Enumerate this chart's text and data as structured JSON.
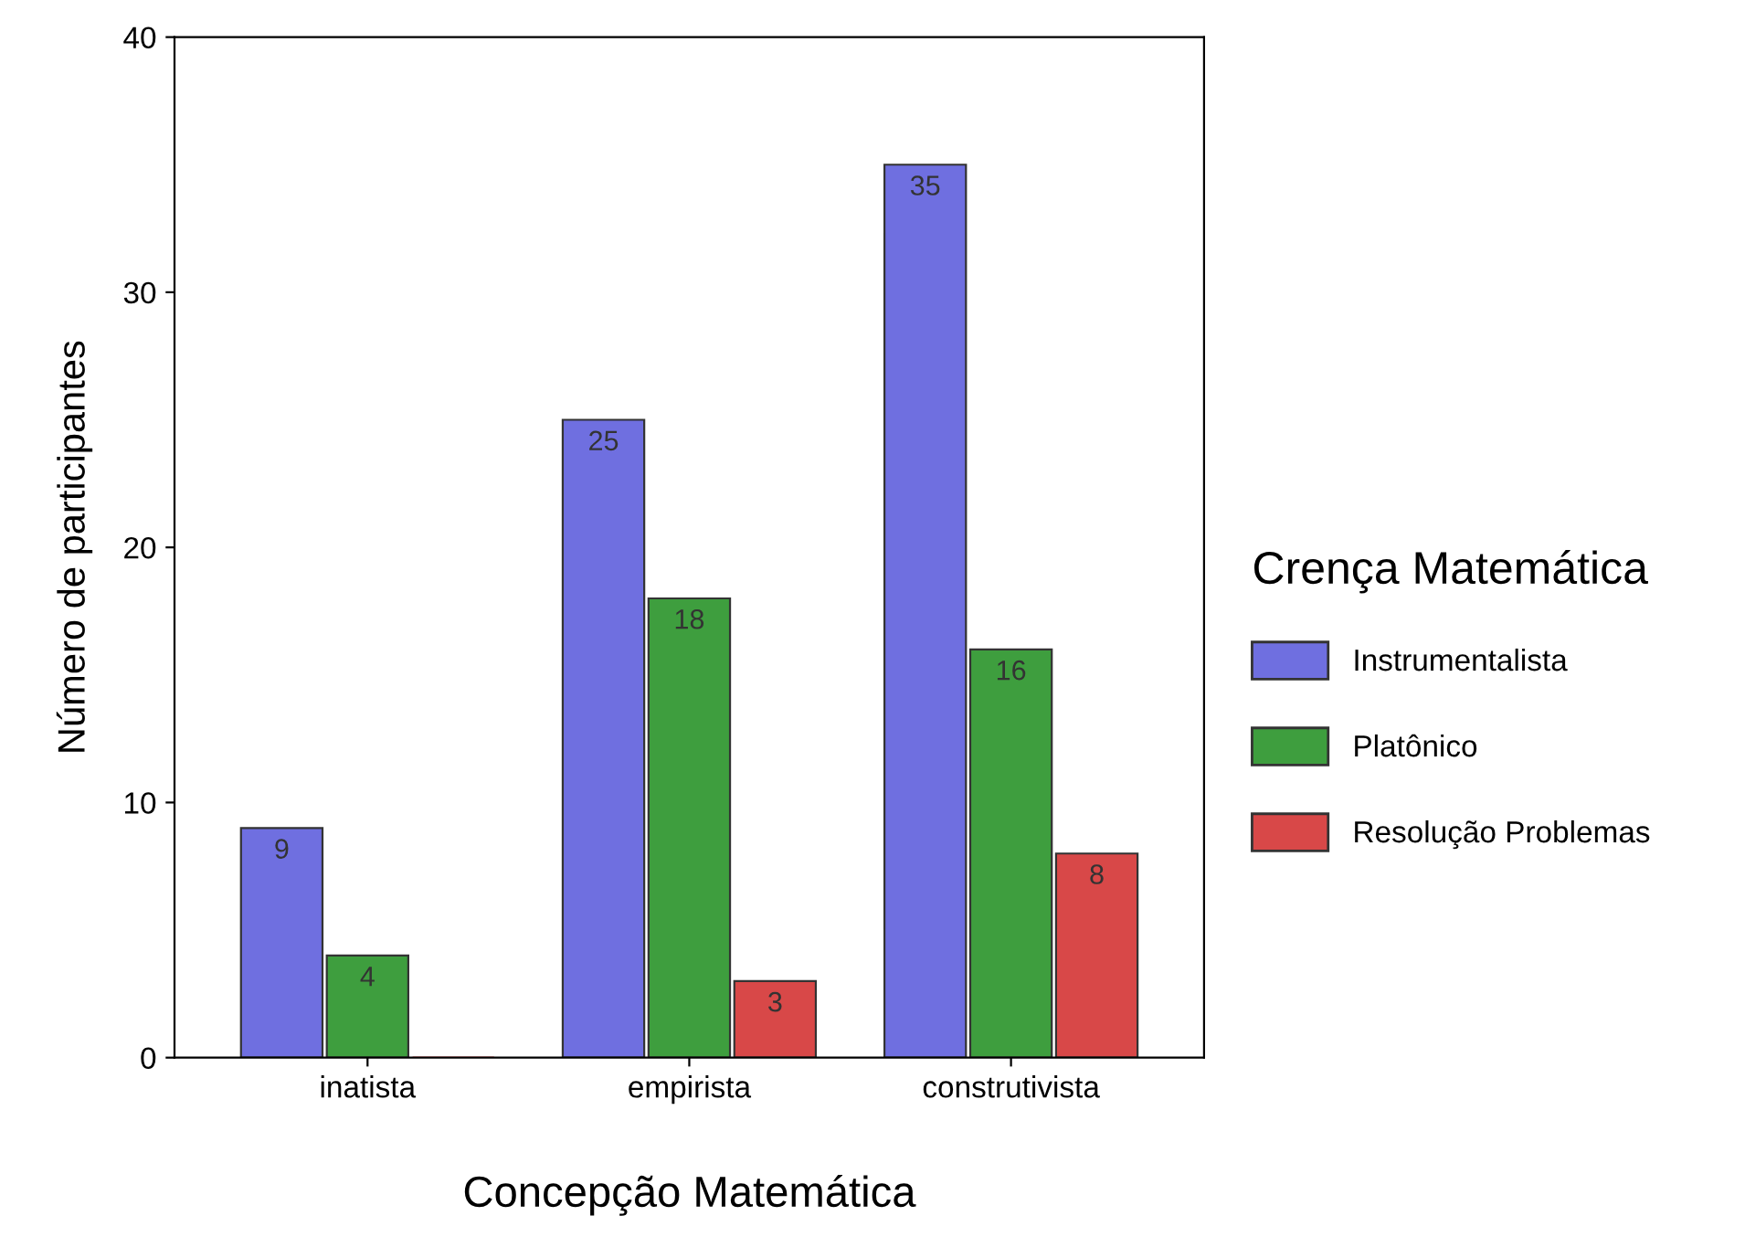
{
  "chart_data": {
    "type": "bar",
    "xlabel": "Concepção Matemática",
    "ylabel": "Número de participantes",
    "legend_title": "Crença Matemática",
    "categories": [
      "inatista",
      "empirista",
      "construtivista"
    ],
    "series": [
      {
        "name": "Instrumentalista",
        "color": "#6f6fe0",
        "values": [
          9,
          25,
          35
        ],
        "value_labels": [
          "9",
          "25",
          "35"
        ]
      },
      {
        "name": "Platônico",
        "color": "#3e9e3e",
        "values": [
          4,
          18,
          16
        ],
        "value_labels": [
          "4",
          "18",
          "16"
        ]
      },
      {
        "name": "Resolução Problemas",
        "color": "#d84848",
        "values": [
          0,
          3,
          8
        ],
        "value_labels": [
          null,
          "3",
          "8"
        ]
      }
    ],
    "ylim": [
      0,
      40
    ],
    "yticks": [
      0,
      10,
      20,
      30,
      40
    ],
    "grid": false,
    "legend": "right"
  }
}
